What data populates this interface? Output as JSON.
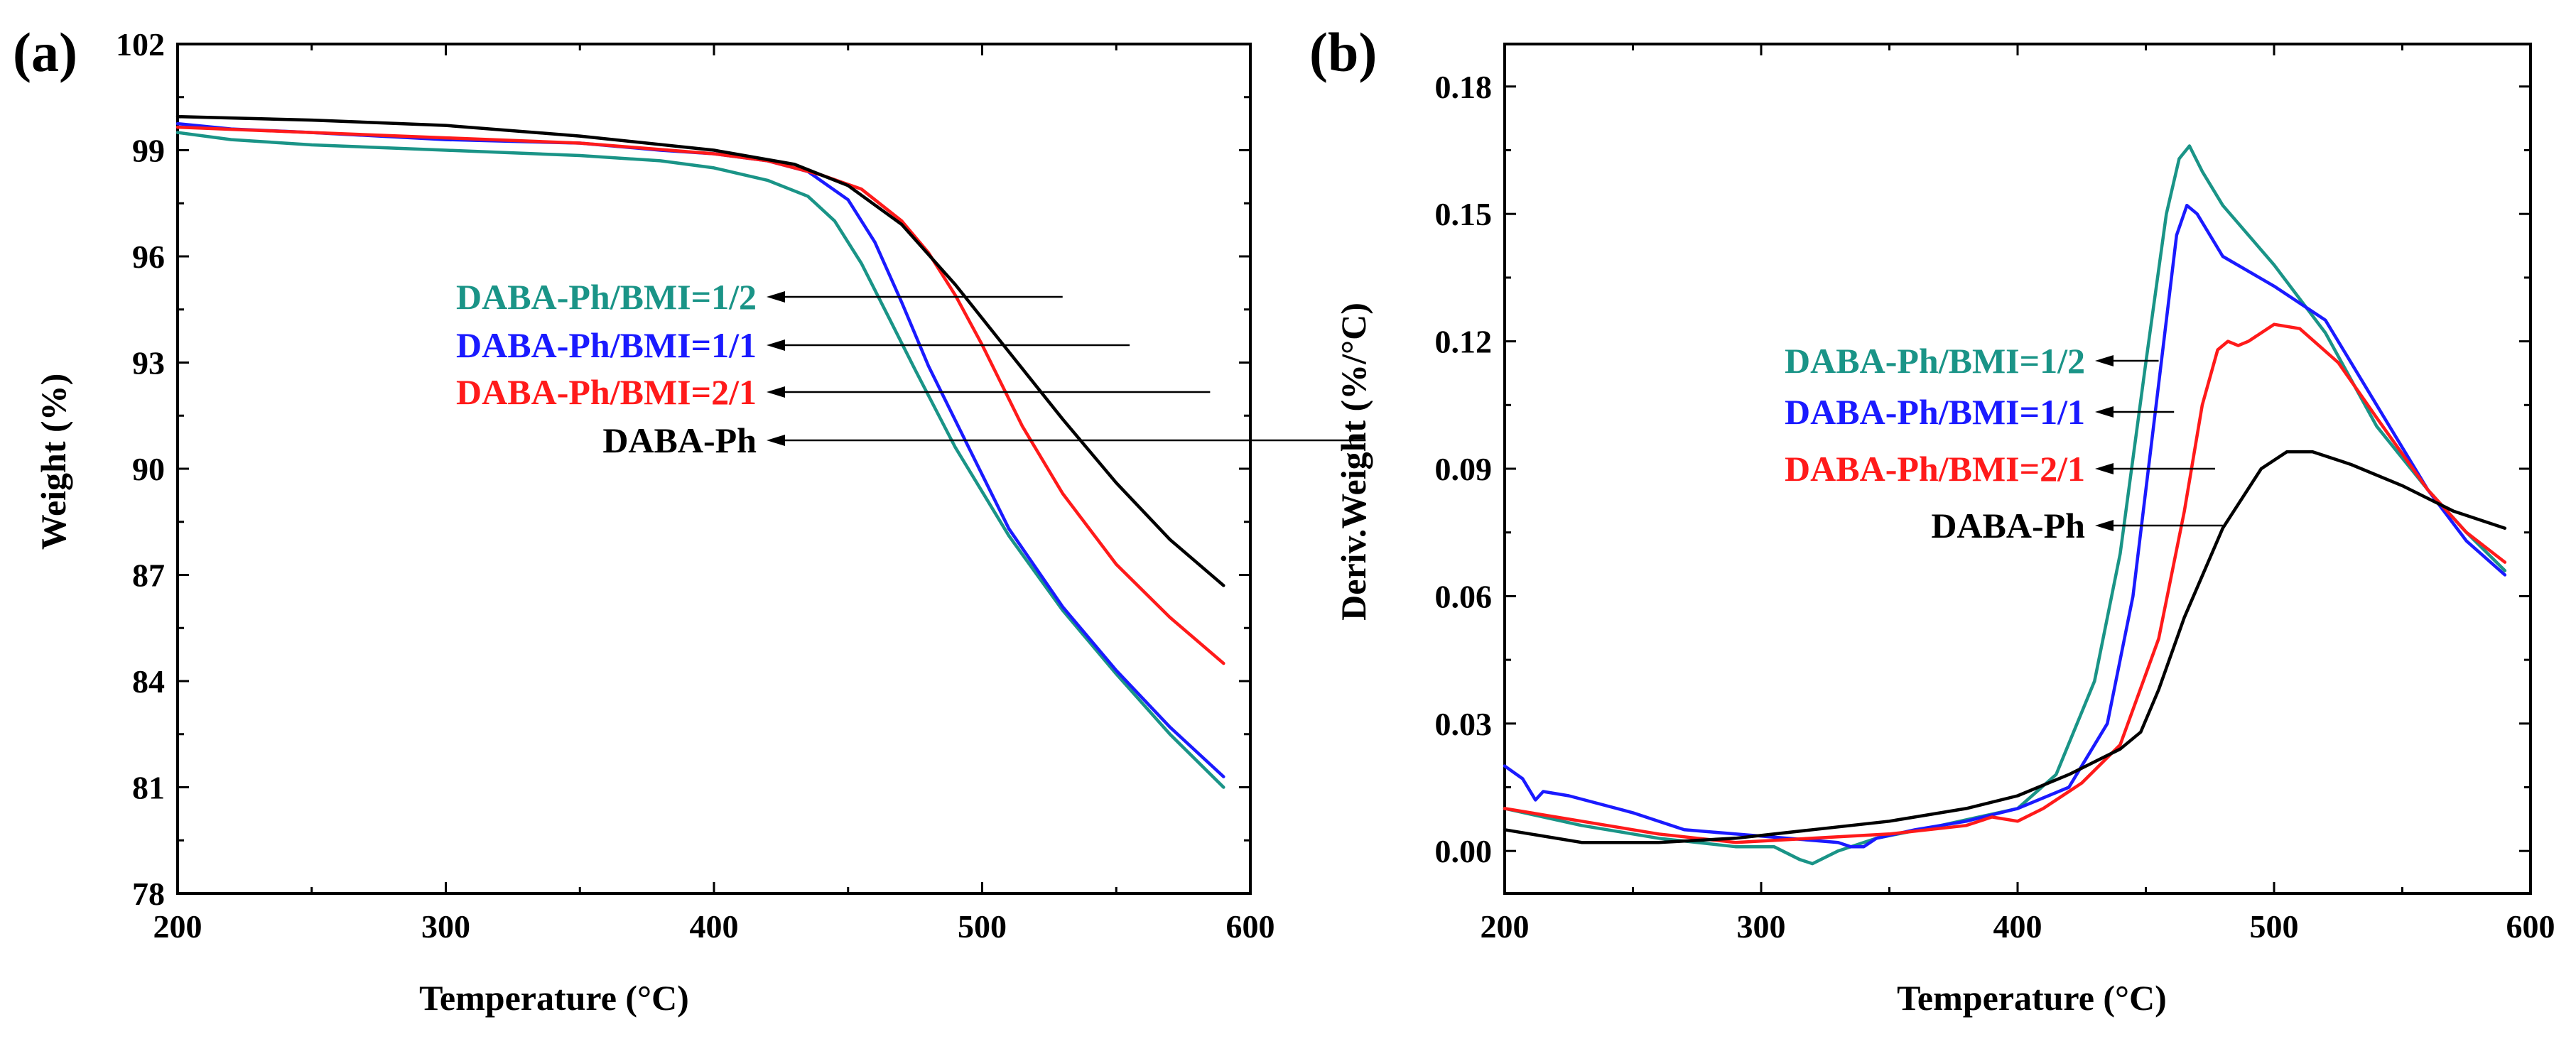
{
  "colors": {
    "black": "#000000",
    "teal": "#1a9487",
    "blue": "#1a1aff",
    "red": "#ff1a1a"
  },
  "chart_data": [
    {
      "panel": "(a)",
      "type": "line",
      "xlabel": "Temperature (°C)",
      "ylabel": "Weight (%)",
      "xlim": [
        200,
        600
      ],
      "ylim": [
        78,
        102
      ],
      "xticks": [
        200,
        300,
        400,
        500,
        600
      ],
      "yticks": [
        78,
        81,
        84,
        87,
        90,
        93,
        96,
        99,
        102
      ],
      "legend": [
        {
          "label": "DABA-Ph/BMI=1/2",
          "series": 0,
          "arrow_to": [
            530,
            94.9
          ]
        },
        {
          "label": "DABA-Ph/BMI=1/1",
          "series": 1,
          "arrow_to": [
            555,
            93.5
          ]
        },
        {
          "label": "DABA-Ph/BMI=2/1",
          "series": 2,
          "arrow_to": [
            585,
            92.2
          ]
        },
        {
          "label": "DABA-Ph",
          "series": 3,
          "arrow_to": [
            643,
            90.8
          ]
        }
      ],
      "series": [
        {
          "name": "DABA-Ph/BMI=1/2",
          "color": "teal",
          "x": [
            200,
            220,
            250,
            300,
            350,
            380,
            400,
            420,
            435,
            445,
            455,
            465,
            475,
            490,
            510,
            530,
            550,
            570,
            590
          ],
          "y": [
            99.5,
            99.3,
            99.15,
            99.0,
            98.85,
            98.7,
            98.5,
            98.15,
            97.7,
            97.0,
            95.8,
            94.3,
            92.8,
            90.6,
            88.1,
            86.0,
            84.2,
            82.5,
            81.0
          ]
        },
        {
          "name": "DABA-Ph/BMI=1/1",
          "color": "blue",
          "x": [
            200,
            220,
            250,
            300,
            350,
            380,
            400,
            420,
            435,
            450,
            460,
            470,
            480,
            495,
            510,
            530,
            550,
            570,
            590
          ],
          "y": [
            99.75,
            99.6,
            99.5,
            99.3,
            99.2,
            99.0,
            98.9,
            98.7,
            98.4,
            97.6,
            96.4,
            94.7,
            92.9,
            90.6,
            88.3,
            86.1,
            84.3,
            82.7,
            81.3
          ]
        },
        {
          "name": "DABA-Ph/BMI=2/1",
          "color": "red",
          "x": [
            200,
            250,
            300,
            350,
            400,
            420,
            440,
            455,
            470,
            480,
            490,
            500,
            515,
            530,
            550,
            570,
            590
          ],
          "y": [
            99.65,
            99.5,
            99.35,
            99.2,
            98.9,
            98.7,
            98.3,
            97.9,
            97.0,
            96.1,
            94.9,
            93.5,
            91.2,
            89.3,
            87.3,
            85.8,
            84.5
          ]
        },
        {
          "name": "DABA-Ph",
          "color": "black",
          "x": [
            200,
            250,
            300,
            350,
            400,
            430,
            450,
            470,
            490,
            510,
            530,
            550,
            570,
            590
          ],
          "y": [
            99.95,
            99.85,
            99.7,
            99.4,
            99.0,
            98.6,
            98.0,
            96.9,
            95.2,
            93.3,
            91.4,
            89.6,
            88.0,
            86.7
          ]
        }
      ]
    },
    {
      "panel": "(b)",
      "type": "line",
      "xlabel": "Temperature (°C)",
      "ylabel": "Deriv.Weight (%/°C)",
      "xlim": [
        200,
        600
      ],
      "ylim": [
        -0.01,
        0.19
      ],
      "xticks": [
        200,
        300,
        400,
        500,
        600
      ],
      "yticks": [
        0.0,
        0.03,
        0.06,
        0.09,
        0.12,
        0.15,
        0.18
      ],
      "ytick_labels": [
        "0.00",
        "0.03",
        "0.06",
        "0.09",
        "0.12",
        "0.15",
        "0.18"
      ],
      "legend": [
        {
          "label": "DABA-Ph/BMI=1/2",
          "series": 0,
          "arrow_to": [
            455,
            0.1165
          ]
        },
        {
          "label": "DABA-Ph/BMI=1/1",
          "series": 1,
          "arrow_to": [
            461,
            0.1035
          ]
        },
        {
          "label": "DABA-Ph/BMI=2/1",
          "series": 2,
          "arrow_to": [
            477,
            0.0905
          ]
        },
        {
          "label": "DABA-Ph",
          "series": 3,
          "arrow_to": [
            480,
            0.0765
          ]
        }
      ],
      "series": [
        {
          "name": "DABA-Ph/BMI=1/2",
          "color": "teal",
          "x": [
            200,
            230,
            260,
            290,
            305,
            315,
            320,
            330,
            345,
            370,
            400,
            415,
            430,
            440,
            450,
            458,
            463,
            467,
            472,
            480,
            500,
            520,
            540,
            560,
            575,
            590
          ],
          "y": [
            0.01,
            0.006,
            0.003,
            0.001,
            0.001,
            -0.002,
            -0.003,
            0.0,
            0.003,
            0.006,
            0.01,
            0.018,
            0.04,
            0.07,
            0.115,
            0.15,
            0.163,
            0.166,
            0.16,
            0.152,
            0.138,
            0.122,
            0.1,
            0.085,
            0.075,
            0.066
          ]
        },
        {
          "name": "DABA-Ph/BMI=1/1",
          "color": "blue",
          "x": [
            200,
            207,
            212,
            215,
            225,
            250,
            270,
            290,
            310,
            330,
            335,
            340,
            345,
            360,
            380,
            400,
            420,
            435,
            445,
            455,
            462,
            466,
            470,
            480,
            500,
            520,
            540,
            560,
            575,
            590
          ],
          "y": [
            0.02,
            0.017,
            0.012,
            0.014,
            0.013,
            0.009,
            0.005,
            0.004,
            0.003,
            0.002,
            0.001,
            0.001,
            0.003,
            0.005,
            0.007,
            0.01,
            0.015,
            0.03,
            0.06,
            0.11,
            0.145,
            0.152,
            0.15,
            0.14,
            0.133,
            0.125,
            0.105,
            0.085,
            0.073,
            0.065
          ]
        },
        {
          "name": "DABA-Ph/BMI=2/1",
          "color": "red",
          "x": [
            200,
            230,
            260,
            290,
            320,
            350,
            380,
            390,
            400,
            410,
            425,
            440,
            455,
            465,
            472,
            478,
            482,
            486,
            490,
            500,
            510,
            525,
            540,
            560,
            575,
            590
          ],
          "y": [
            0.01,
            0.007,
            0.004,
            0.002,
            0.003,
            0.004,
            0.006,
            0.008,
            0.007,
            0.01,
            0.016,
            0.025,
            0.05,
            0.08,
            0.105,
            0.118,
            0.12,
            0.119,
            0.12,
            0.124,
            0.123,
            0.115,
            0.102,
            0.085,
            0.075,
            0.068
          ]
        },
        {
          "name": "DABA-Ph",
          "color": "black",
          "x": [
            200,
            230,
            260,
            290,
            320,
            350,
            380,
            400,
            420,
            440,
            448,
            455,
            465,
            480,
            495,
            505,
            515,
            530,
            550,
            570,
            590
          ],
          "y": [
            0.005,
            0.002,
            0.002,
            0.003,
            0.005,
            0.007,
            0.01,
            0.013,
            0.018,
            0.024,
            0.028,
            0.038,
            0.055,
            0.076,
            0.09,
            0.094,
            0.094,
            0.091,
            0.086,
            0.08,
            0.076
          ]
        }
      ]
    }
  ]
}
